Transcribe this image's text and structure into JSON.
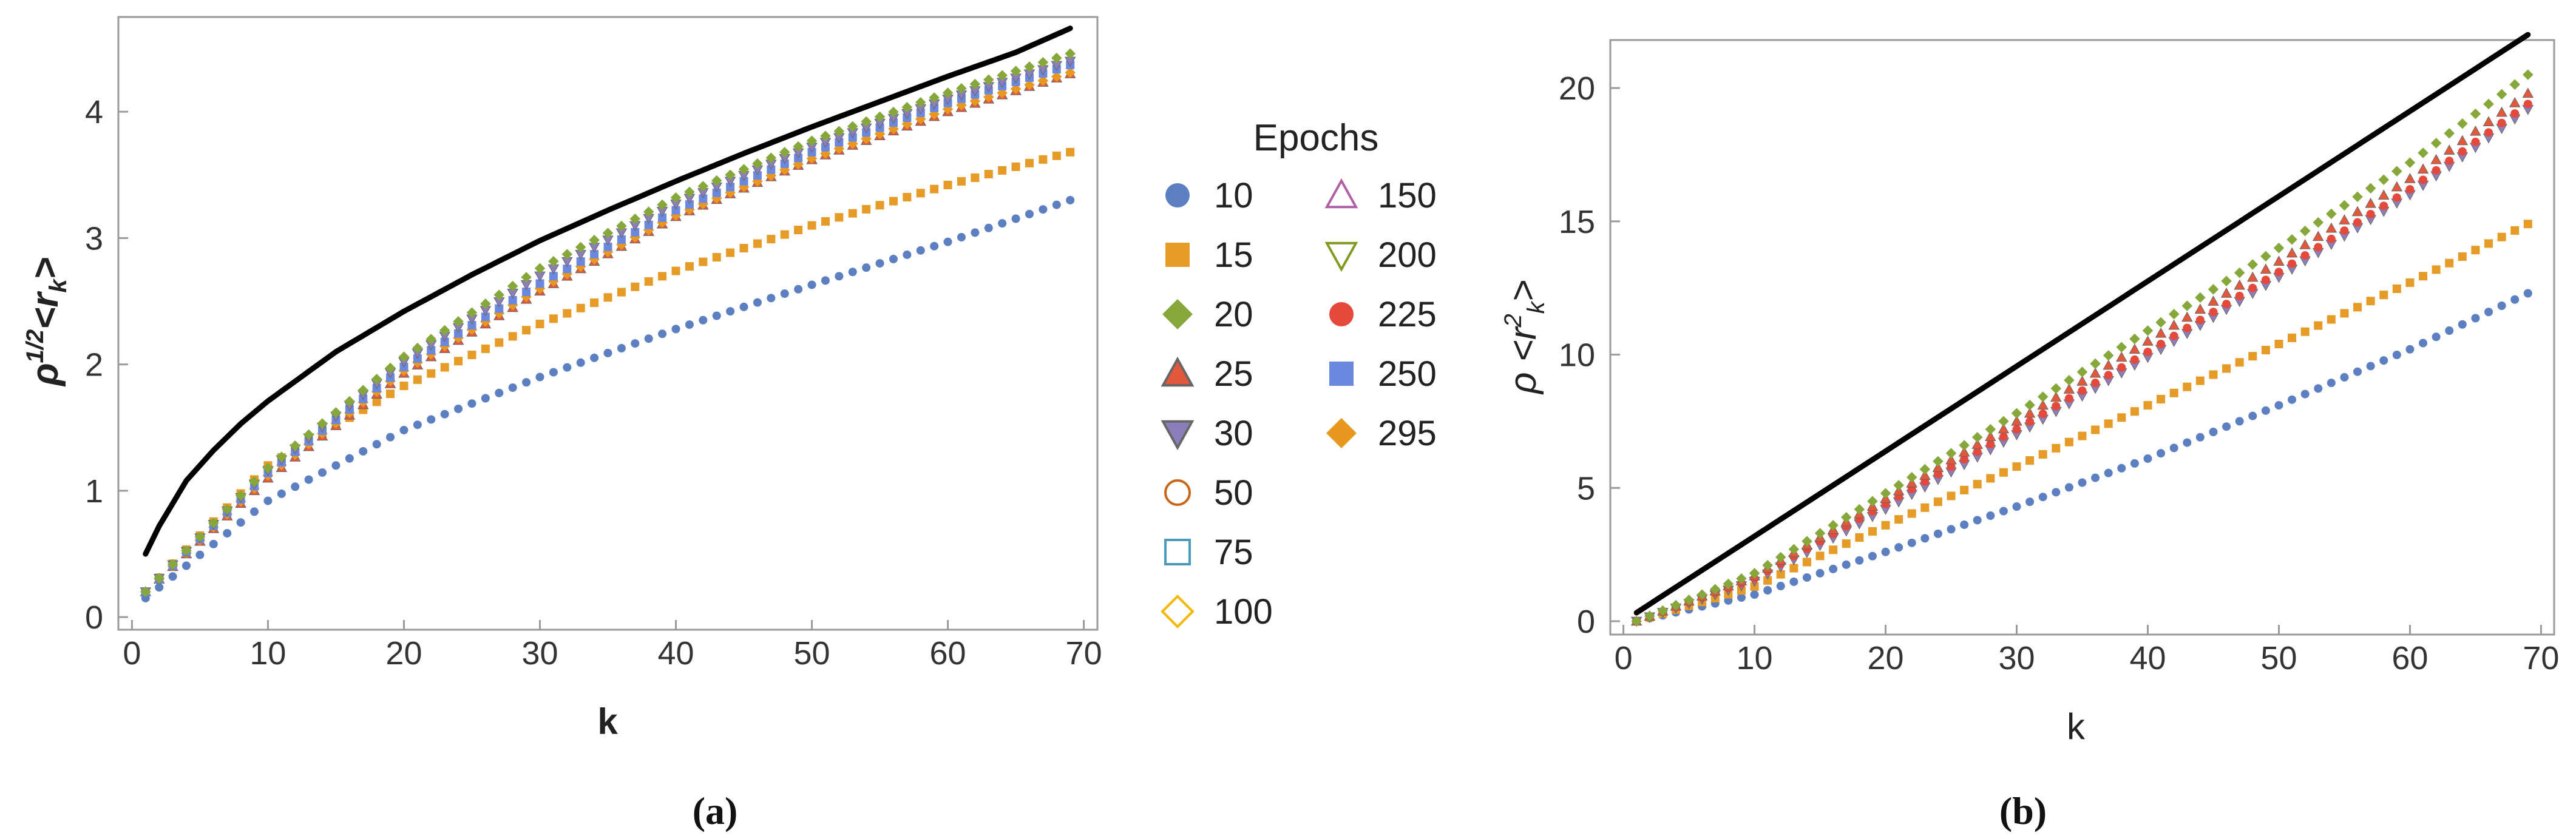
{
  "legend": {
    "title": "Epochs",
    "entries": [
      {
        "label": "10",
        "marker": "circle-filled",
        "color": "#5b7fc1"
      },
      {
        "label": "15",
        "marker": "square-filled",
        "color": "#e59b26"
      },
      {
        "label": "20",
        "marker": "diamond-filled",
        "color": "#86a83a"
      },
      {
        "label": "25",
        "marker": "triangle-up-filled",
        "color": "#e3573a"
      },
      {
        "label": "30",
        "marker": "triangle-down-filled",
        "color": "#8c7dbb"
      },
      {
        "label": "50",
        "marker": "circle-open",
        "color": "#c8651b"
      },
      {
        "label": "75",
        "marker": "square-open",
        "color": "#4c9bbf"
      },
      {
        "label": "100",
        "marker": "diamond-open",
        "color": "#f5b700"
      },
      {
        "label": "150",
        "marker": "triangle-up-open",
        "color": "#b05fa6"
      },
      {
        "label": "200",
        "marker": "triangle-down-open",
        "color": "#7e9a1f"
      },
      {
        "label": "225",
        "marker": "circle-filled",
        "color": "#e4493c"
      },
      {
        "label": "250",
        "marker": "square-filled",
        "color": "#6a88de"
      },
      {
        "label": "295",
        "marker": "diamond-filled",
        "color": "#e8971f"
      }
    ]
  },
  "chart_data": [
    {
      "panel": "a",
      "caption": "(a)",
      "type": "scatter",
      "title": "",
      "xlabel": "k",
      "ylabel": "ρ^{1/2}<r_k>",
      "xlim": [
        -1,
        71
      ],
      "ylim": [
        -0.1,
        4.75
      ],
      "xticks": [
        0,
        10,
        20,
        30,
        40,
        50,
        60,
        70
      ],
      "yticks": [
        0,
        1,
        2,
        3,
        4
      ],
      "grid": false,
      "reference_curve": {
        "name": "theory",
        "k": [
          1,
          2,
          4,
          6,
          8,
          10,
          15,
          20,
          25,
          30,
          35,
          40,
          45,
          50,
          55,
          60,
          65,
          69
        ],
        "values": [
          0.5,
          0.72,
          1.08,
          1.32,
          1.53,
          1.71,
          2.1,
          2.42,
          2.71,
          2.98,
          3.22,
          3.45,
          3.67,
          3.88,
          4.08,
          4.28,
          4.47,
          4.66
        ]
      },
      "x_range": [
        1,
        69
      ],
      "series": [
        {
          "name": "10",
          "k": [
            1,
            10,
            20,
            30,
            40,
            50,
            60,
            69
          ],
          "values": [
            0.15,
            0.92,
            1.48,
            1.9,
            2.28,
            2.63,
            2.97,
            3.3
          ]
        },
        {
          "name": "15",
          "k": [
            1,
            10,
            20,
            30,
            40,
            50,
            60,
            69
          ],
          "values": [
            0.2,
            1.2,
            1.83,
            2.32,
            2.74,
            3.1,
            3.42,
            3.68
          ]
        },
        {
          "name": "25",
          "k": [
            1,
            10,
            20,
            30,
            40,
            50,
            60,
            69
          ],
          "values": [
            0.2,
            1.1,
            1.93,
            2.58,
            3.17,
            3.62,
            4.0,
            4.3
          ]
        },
        {
          "name": "295",
          "k": [
            1,
            10,
            20,
            30,
            40,
            50,
            60,
            69
          ],
          "values": [
            0.2,
            1.12,
            1.95,
            2.6,
            3.18,
            3.63,
            4.02,
            4.31
          ]
        },
        {
          "name": "250",
          "k": [
            1,
            10,
            20,
            30,
            40,
            50,
            60,
            69
          ],
          "values": [
            0.2,
            1.14,
            1.98,
            2.64,
            3.22,
            3.68,
            4.07,
            4.37
          ]
        },
        {
          "name": "30",
          "k": [
            1,
            10,
            20,
            30,
            40,
            50,
            60,
            69
          ],
          "values": [
            0.2,
            1.16,
            2.02,
            2.7,
            3.27,
            3.72,
            4.1,
            4.4
          ]
        },
        {
          "name": "20",
          "k": [
            1,
            10,
            20,
            30,
            40,
            50,
            60,
            69
          ],
          "values": [
            0.2,
            1.18,
            2.06,
            2.76,
            3.32,
            3.77,
            4.15,
            4.46
          ]
        }
      ]
    },
    {
      "panel": "b",
      "caption": "(b)",
      "type": "scatter",
      "title": "",
      "xlabel": "k",
      "ylabel": "ρ <r^2_k>",
      "xlim": [
        -1,
        71
      ],
      "ylim": [
        -0.5,
        21.8
      ],
      "xticks": [
        0,
        10,
        20,
        30,
        40,
        50,
        60,
        70
      ],
      "yticks": [
        0,
        5,
        10,
        15,
        20
      ],
      "grid": false,
      "reference_curve": {
        "name": "theory",
        "k": [
          1,
          69
        ],
        "values": [
          0.32,
          22.0
        ]
      },
      "x_range": [
        1,
        69
      ],
      "series": [
        {
          "name": "10",
          "k": [
            1,
            10,
            20,
            30,
            40,
            50,
            60,
            69
          ],
          "values": [
            0.0,
            1.0,
            2.6,
            4.3,
            6.1,
            8.1,
            10.2,
            12.3
          ]
        },
        {
          "name": "15",
          "k": [
            1,
            10,
            20,
            30,
            40,
            50,
            60,
            69
          ],
          "values": [
            0.0,
            1.3,
            3.6,
            5.8,
            8.1,
            10.4,
            12.7,
            14.9
          ]
        },
        {
          "name": "30",
          "k": [
            1,
            10,
            20,
            30,
            40,
            50,
            60,
            69
          ],
          "values": [
            0.0,
            1.5,
            4.2,
            7.0,
            9.9,
            12.9,
            16.0,
            19.2
          ]
        },
        {
          "name": "225",
          "k": [
            1,
            10,
            20,
            30,
            40,
            50,
            60,
            69
          ],
          "values": [
            0.0,
            1.6,
            4.4,
            7.2,
            10.1,
            13.1,
            16.2,
            19.4
          ]
        },
        {
          "name": "25",
          "k": [
            1,
            10,
            20,
            30,
            40,
            50,
            60,
            69
          ],
          "values": [
            0.0,
            1.7,
            4.6,
            7.5,
            10.5,
            13.5,
            16.6,
            19.8
          ]
        },
        {
          "name": "20",
          "k": [
            1,
            10,
            20,
            30,
            40,
            50,
            60,
            69
          ],
          "values": [
            0.0,
            1.8,
            4.8,
            7.8,
            10.9,
            14.0,
            17.2,
            20.5
          ]
        }
      ]
    }
  ]
}
